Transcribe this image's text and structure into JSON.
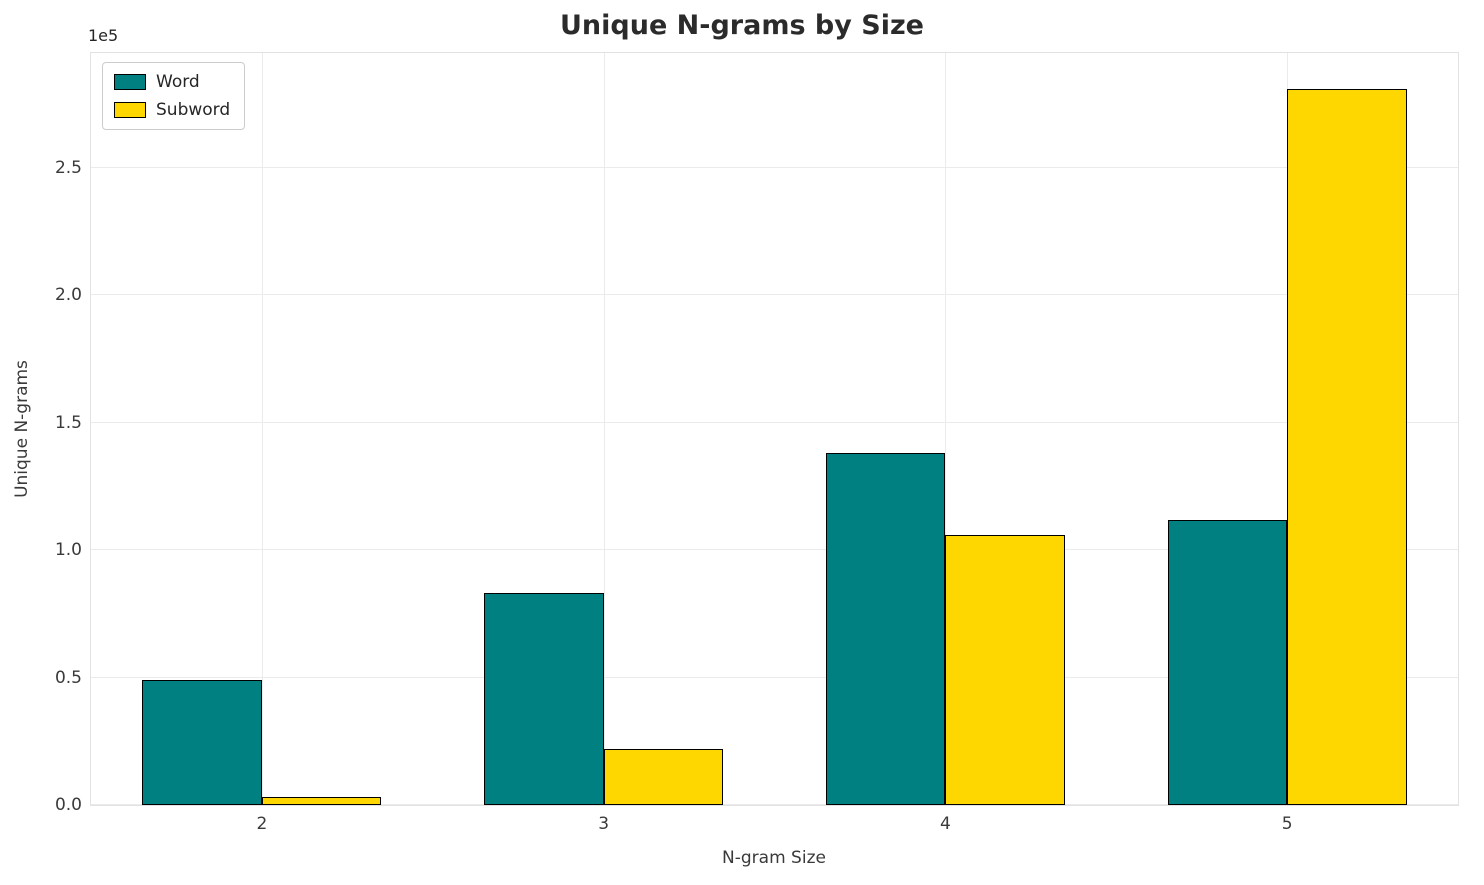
{
  "chart_data": {
    "type": "bar",
    "title": "Unique N-grams by Size",
    "xlabel": "N-gram Size",
    "ylabel": "Unique N-grams",
    "offset_label": "1e5",
    "categories": [
      "2",
      "3",
      "4",
      "5"
    ],
    "series": [
      {
        "name": "Word",
        "color": "#008080",
        "values": [
          49000,
          83000,
          138000,
          112000
        ]
      },
      {
        "name": "Subword",
        "color": "#ffd700",
        "values": [
          3000,
          22000,
          106000,
          281000
        ]
      }
    ],
    "ylim": [
      0,
      295000
    ],
    "yticks": [
      0,
      50000,
      100000,
      150000,
      200000,
      250000
    ],
    "ytick_labels": [
      "0.0",
      "0.5",
      "1.0",
      "1.5",
      "2.0",
      "2.5"
    ],
    "bar_width_frac": 0.35,
    "edge_color": "#000000",
    "grid": true,
    "legend_position": "upper left",
    "background_color": "#ffffff"
  }
}
